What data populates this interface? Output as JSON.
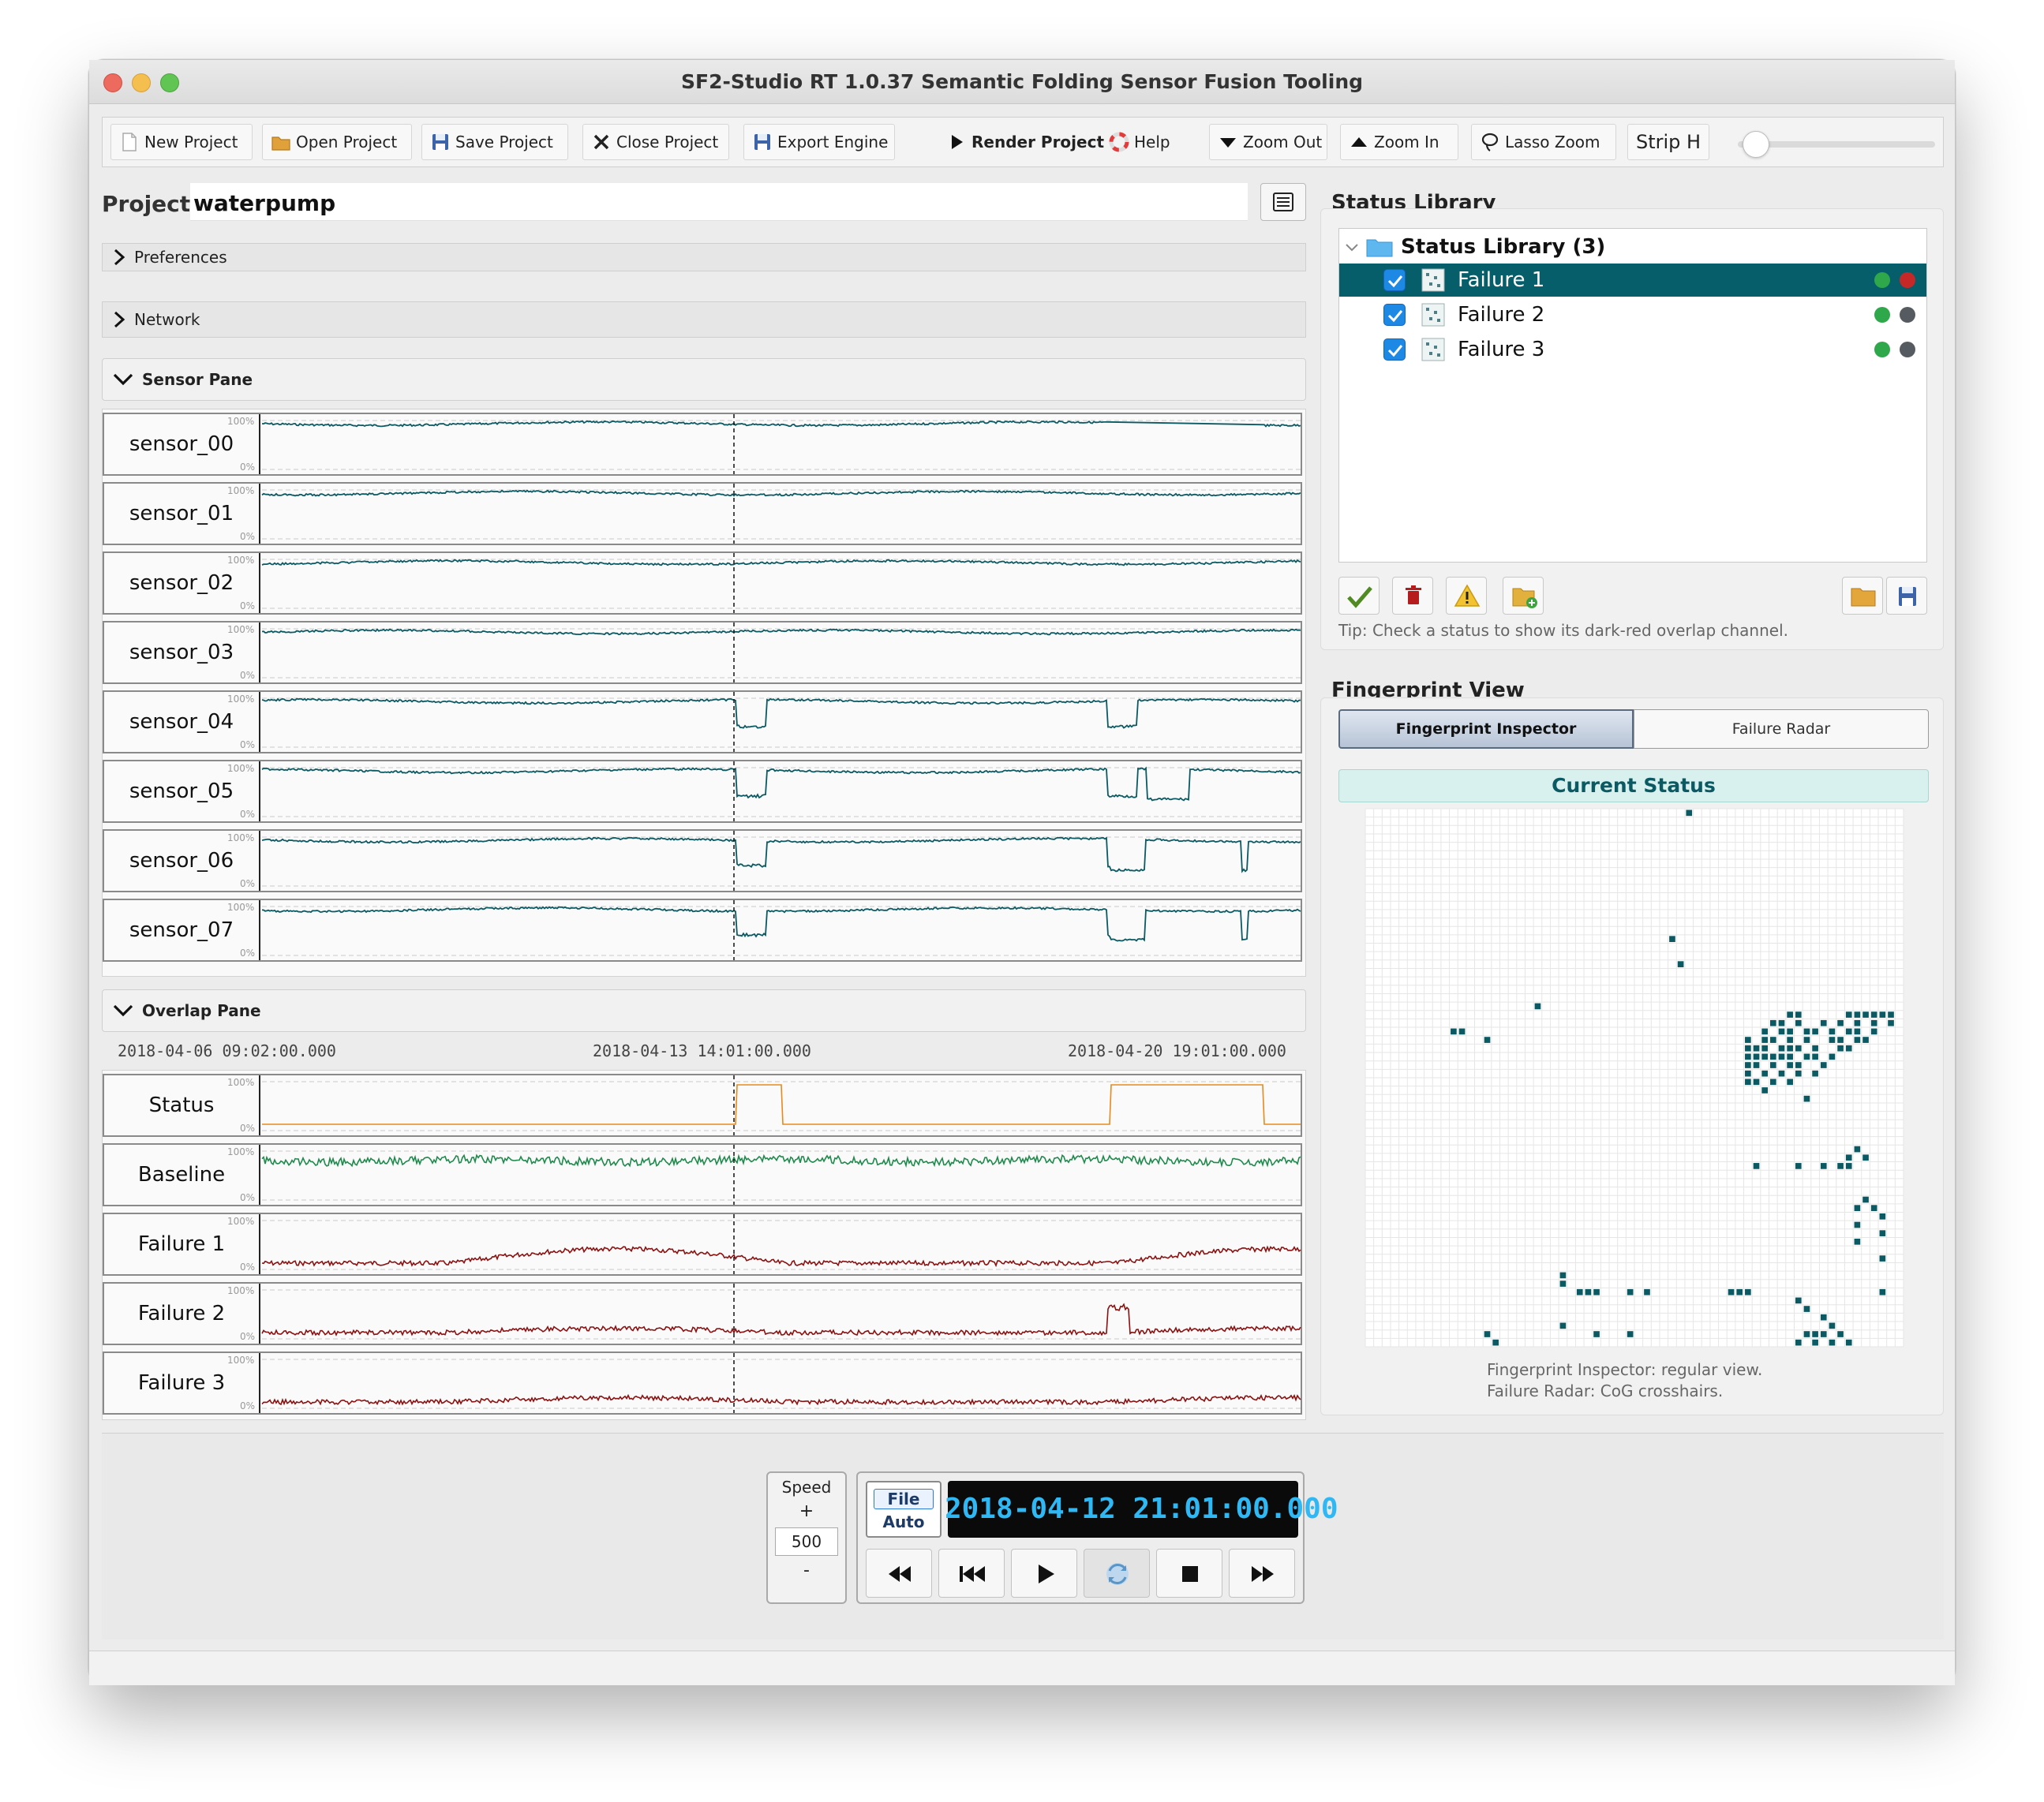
{
  "window": {
    "title": "SF2-Studio RT 1.0.37 Semantic Folding Sensor Fusion Tooling"
  },
  "toolbar": {
    "new_project": "New Project",
    "open_project": "Open Project",
    "save_project": "Save Project",
    "close_project": "Close Project",
    "export_engine": "Export Engine",
    "render_project": "Render Project",
    "help": "Help",
    "zoom_out": "Zoom Out",
    "zoom_in": "Zoom In",
    "lasso_zoom": "Lasso Zoom",
    "strip_h": "Strip H",
    "strip_h_level": 0.0
  },
  "project": {
    "label": "Project",
    "name": "waterpump"
  },
  "sections": {
    "preferences": "Preferences",
    "network": "Network",
    "sensor_pane": "Sensor Pane",
    "overlap_pane": "Overlap Pane"
  },
  "strip_scale": {
    "max": "100%",
    "min": "0%"
  },
  "sensor_strips": [
    {
      "label": "sensor_00",
      "color": "#0b5a63"
    },
    {
      "label": "sensor_01",
      "color": "#0b5a63"
    },
    {
      "label": "sensor_02",
      "color": "#0b5a63"
    },
    {
      "label": "sensor_03",
      "color": "#0b5a63"
    },
    {
      "label": "sensor_04",
      "color": "#0b5a63"
    },
    {
      "label": "sensor_05",
      "color": "#0b5a63"
    },
    {
      "label": "sensor_06",
      "color": "#0b5a63"
    },
    {
      "label": "sensor_07",
      "color": "#0b5a63"
    }
  ],
  "timeline": {
    "t_start": "2018-04-06 09:02:00.000",
    "t_mid": "2018-04-13 14:01:00.000",
    "t_end": "2018-04-20 19:01:00.000"
  },
  "overlap_strips": [
    {
      "label": "Status",
      "color": "#e8891c"
    },
    {
      "label": "Baseline",
      "color": "#1f8a4c"
    },
    {
      "label": "Failure 1",
      "color": "#8b1010"
    },
    {
      "label": "Failure 2",
      "color": "#8b1010"
    },
    {
      "label": "Failure 3",
      "color": "#8b1010"
    }
  ],
  "playback": {
    "speed_label": "Speed",
    "speed_plus": "+",
    "speed_value": "500",
    "speed_minus": "-",
    "file_label": "File",
    "auto_label": "Auto",
    "clock": "2018-04-12  21:01:00.000"
  },
  "status_library": {
    "title": "Status Library",
    "root": "Status Library (3)",
    "items": [
      {
        "label": "Failure 1",
        "checked": true,
        "selected": true,
        "dot1": "#2ea84a",
        "dot2": "#c62828"
      },
      {
        "label": "Failure 2",
        "checked": true,
        "selected": false,
        "dot1": "#2ea84a",
        "dot2": "#555b61"
      },
      {
        "label": "Failure 3",
        "checked": true,
        "selected": false,
        "dot1": "#2ea84a",
        "dot2": "#555b61"
      }
    ],
    "tip": "Tip: Check a status to show its dark-red overlap channel."
  },
  "fingerprint": {
    "title": "Fingerprint View",
    "tab_inspector": "Fingerprint Inspector",
    "tab_radar": "Failure Radar",
    "current_status": "Current Status",
    "note_line1": "Fingerprint Inspector: regular view.",
    "note_line2": "Failure Radar: CoG crosshairs.",
    "grid_size": 64,
    "cell_color": "#0b5a63",
    "active_cells": [
      [
        38,
        0
      ],
      [
        36,
        15
      ],
      [
        37,
        18
      ],
      [
        20,
        23
      ],
      [
        10,
        26
      ],
      [
        11,
        26
      ],
      [
        14,
        27
      ],
      [
        50,
        24
      ],
      [
        51,
        24
      ],
      [
        57,
        24
      ],
      [
        58,
        24
      ],
      [
        59,
        24
      ],
      [
        60,
        24
      ],
      [
        61,
        24
      ],
      [
        62,
        24
      ],
      [
        48,
        25
      ],
      [
        49,
        25
      ],
      [
        51,
        25
      ],
      [
        54,
        25
      ],
      [
        56,
        25
      ],
      [
        58,
        25
      ],
      [
        60,
        25
      ],
      [
        62,
        25
      ],
      [
        47,
        26
      ],
      [
        49,
        26
      ],
      [
        50,
        26
      ],
      [
        52,
        26
      ],
      [
        53,
        26
      ],
      [
        55,
        26
      ],
      [
        57,
        26
      ],
      [
        58,
        26
      ],
      [
        60,
        26
      ],
      [
        45,
        27
      ],
      [
        47,
        27
      ],
      [
        48,
        27
      ],
      [
        50,
        27
      ],
      [
        52,
        27
      ],
      [
        55,
        27
      ],
      [
        56,
        27
      ],
      [
        58,
        27
      ],
      [
        59,
        27
      ],
      [
        45,
        28
      ],
      [
        46,
        28
      ],
      [
        47,
        28
      ],
      [
        49,
        28
      ],
      [
        50,
        28
      ],
      [
        51,
        28
      ],
      [
        53,
        28
      ],
      [
        56,
        28
      ],
      [
        57,
        28
      ],
      [
        45,
        29
      ],
      [
        46,
        29
      ],
      [
        47,
        29
      ],
      [
        48,
        29
      ],
      [
        49,
        29
      ],
      [
        50,
        29
      ],
      [
        52,
        29
      ],
      [
        53,
        29
      ],
      [
        55,
        29
      ],
      [
        45,
        30
      ],
      [
        46,
        30
      ],
      [
        48,
        30
      ],
      [
        50,
        30
      ],
      [
        51,
        30
      ],
      [
        54,
        30
      ],
      [
        45,
        31
      ],
      [
        47,
        31
      ],
      [
        49,
        31
      ],
      [
        51,
        31
      ],
      [
        53,
        31
      ],
      [
        45,
        32
      ],
      [
        46,
        32
      ],
      [
        48,
        32
      ],
      [
        50,
        32
      ],
      [
        47,
        33
      ],
      [
        52,
        34
      ],
      [
        58,
        40
      ],
      [
        57,
        41
      ],
      [
        59,
        41
      ],
      [
        46,
        42
      ],
      [
        51,
        42
      ],
      [
        54,
        42
      ],
      [
        56,
        42
      ],
      [
        57,
        42
      ],
      [
        59,
        46
      ],
      [
        58,
        47
      ],
      [
        60,
        47
      ],
      [
        61,
        48
      ],
      [
        58,
        49
      ],
      [
        61,
        50
      ],
      [
        58,
        51
      ],
      [
        61,
        53
      ],
      [
        23,
        55
      ],
      [
        23,
        56
      ],
      [
        25,
        57
      ],
      [
        26,
        57
      ],
      [
        27,
        57
      ],
      [
        31,
        57
      ],
      [
        33,
        57
      ],
      [
        43,
        57
      ],
      [
        44,
        57
      ],
      [
        45,
        57
      ],
      [
        61,
        57
      ],
      [
        51,
        58
      ],
      [
        52,
        59
      ],
      [
        54,
        60
      ],
      [
        55,
        61
      ],
      [
        23,
        61
      ],
      [
        27,
        62
      ],
      [
        31,
        62
      ],
      [
        14,
        62
      ],
      [
        15,
        63
      ],
      [
        52,
        62
      ],
      [
        53,
        62
      ],
      [
        54,
        62
      ],
      [
        56,
        62
      ],
      [
        51,
        63
      ],
      [
        53,
        63
      ],
      [
        55,
        63
      ],
      [
        57,
        63
      ]
    ]
  }
}
